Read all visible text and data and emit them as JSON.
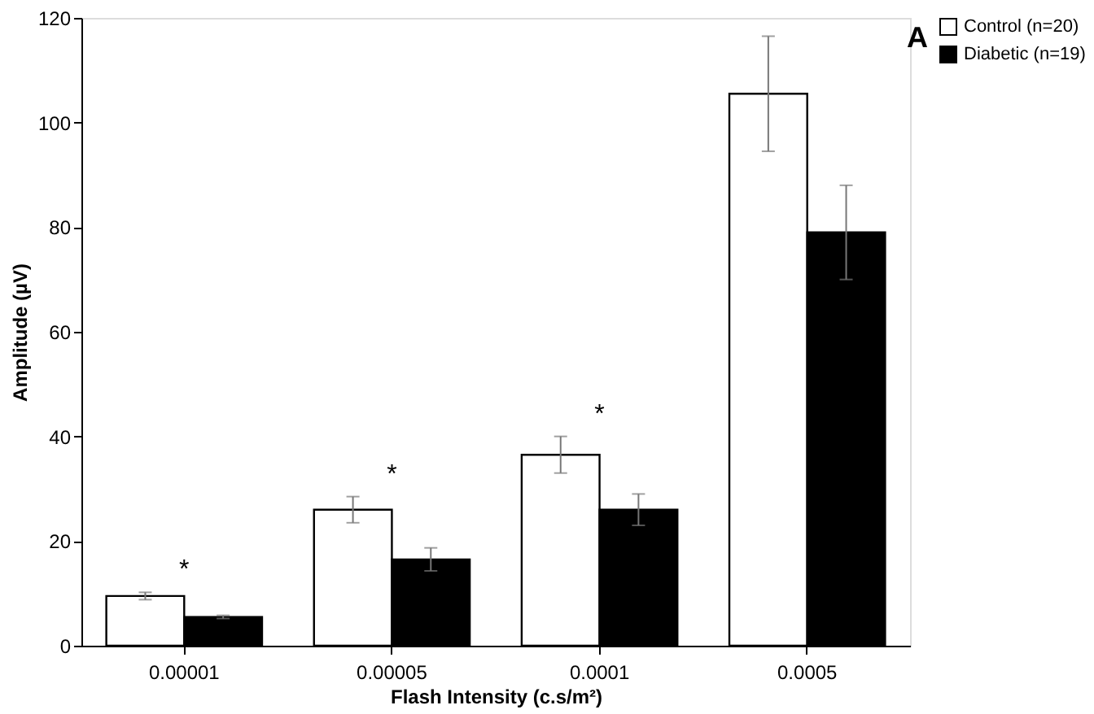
{
  "chart_data": {
    "type": "bar",
    "xlabel": "Flash Intensity (c.s/m²)",
    "ylabel": "Amplitude (µV)",
    "categories": [
      "0.00001",
      "0.00005",
      "0.0001",
      "0.0005"
    ],
    "series": [
      {
        "name": "Control (n=20)",
        "color": "#ffffff",
        "values": [
          9.5,
          26,
          36.5,
          105.5
        ],
        "errors": [
          0.7,
          2.5,
          3.5,
          11
        ]
      },
      {
        "name": "Diabetic (n=19)",
        "color": "#000000",
        "values": [
          5.5,
          16.5,
          26,
          79
        ],
        "errors": [
          0.3,
          2.2,
          3,
          9
        ]
      }
    ],
    "ylim": [
      0,
      120
    ],
    "yticks": [
      0,
      20,
      40,
      60,
      80,
      100,
      120
    ],
    "grid": false,
    "legend": "right",
    "annotations": [
      "*",
      "*",
      "*",
      "A"
    ]
  }
}
